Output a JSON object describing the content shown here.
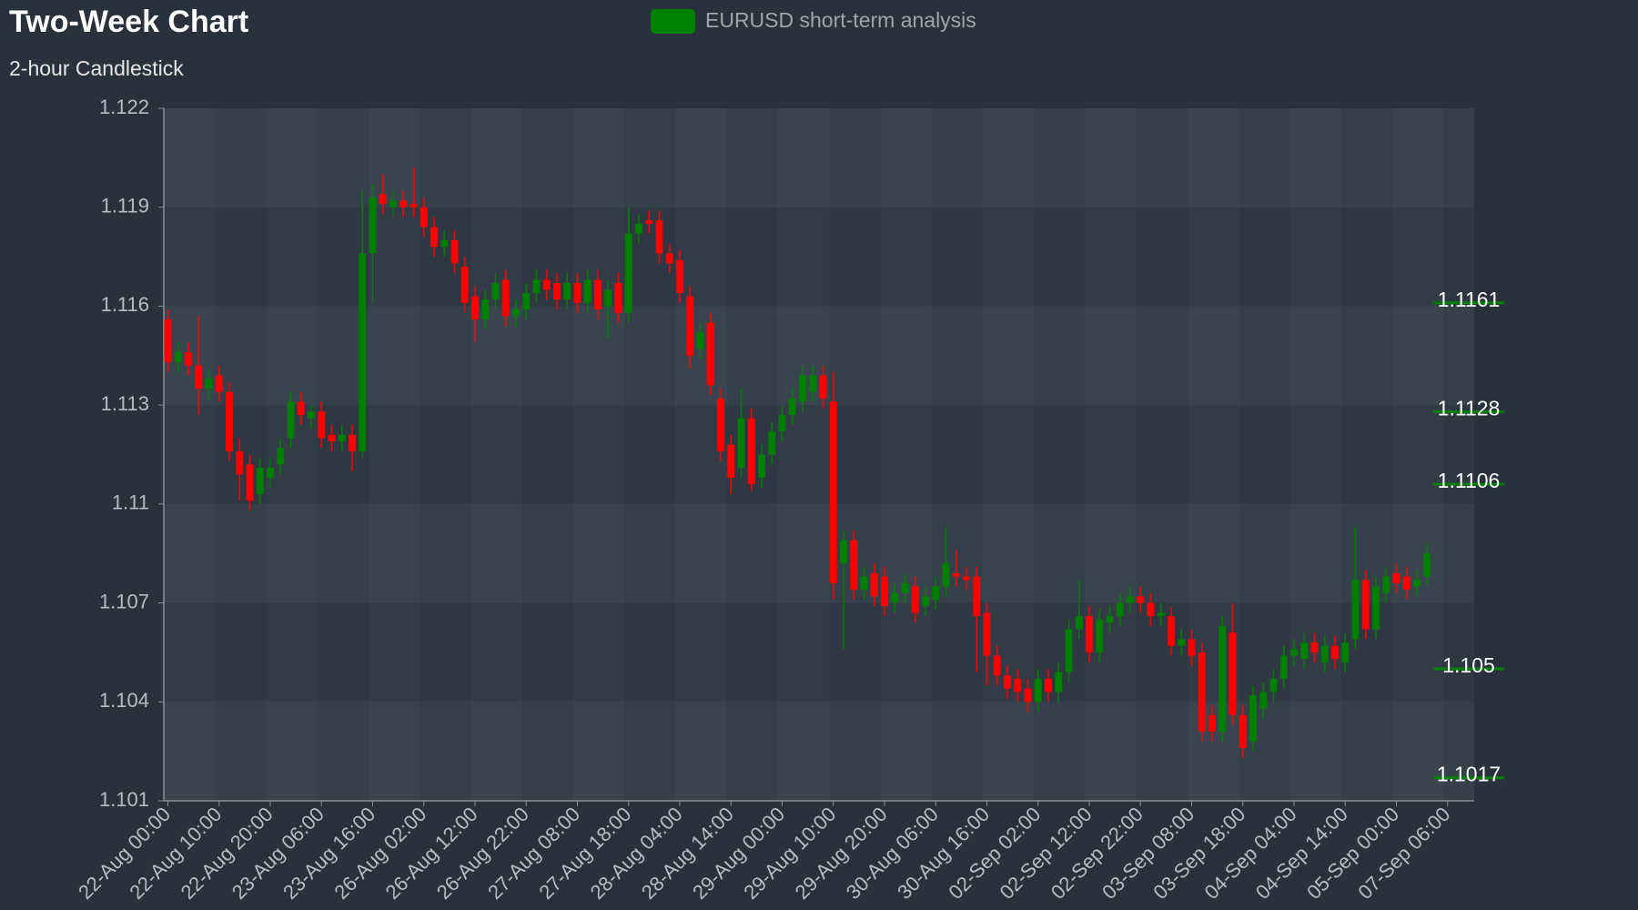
{
  "chart_data": {
    "type": "candlestick",
    "title": "Two-Week Chart",
    "subtitle": "2-hour Candlestick",
    "categories": [
      "22-Aug 00:00",
      null,
      null,
      null,
      null,
      "22-Aug 10:00",
      null,
      null,
      null,
      null,
      "22-Aug 20:00",
      null,
      null,
      null,
      null,
      "23-Aug 06:00",
      null,
      null,
      null,
      null,
      "23-Aug 16:00",
      null,
      null,
      null,
      null,
      "26-Aug 02:00",
      null,
      null,
      null,
      null,
      "26-Aug 12:00",
      null,
      null,
      null,
      null,
      "26-Aug 22:00",
      null,
      null,
      null,
      null,
      "27-Aug 08:00",
      null,
      null,
      null,
      null,
      "27-Aug 18:00",
      null,
      null,
      null,
      null,
      "28-Aug 04:00",
      null,
      null,
      null,
      null,
      "28-Aug 14:00",
      null,
      null,
      null,
      null,
      "29-Aug 00:00",
      null,
      null,
      null,
      null,
      "29-Aug 10:00",
      null,
      null,
      null,
      null,
      "29-Aug 20:00",
      null,
      null,
      null,
      null,
      "30-Aug 06:00",
      null,
      null,
      null,
      null,
      "30-Aug 16:00",
      null,
      null,
      null,
      null,
      "02-Sep 02:00",
      null,
      null,
      null,
      null,
      "02-Sep 12:00",
      null,
      null,
      null,
      null,
      "02-Sep 22:00",
      null,
      null,
      null,
      null,
      "03-Sep 08:00",
      null,
      null,
      null,
      null,
      "03-Sep 18:00",
      null,
      null,
      null,
      null,
      "04-Sep 04:00",
      null,
      null,
      null,
      null,
      "04-Sep 14:00",
      null,
      null,
      null,
      null,
      "05-Sep 00:00",
      null,
      null,
      null,
      null,
      "07-Sep 06:00"
    ],
    "series": [
      {
        "name": "EURUSD short-term analysis",
        "color": "#008000",
        "up_color": "#008000",
        "down_color": "#ff0000",
        "open": [
          1.1156,
          1.1143,
          1.1146,
          1.1142,
          1.1135,
          1.1139,
          1.1134,
          1.1116,
          1.1112,
          1.1103,
          1.1108,
          1.1112,
          1.112,
          1.1131,
          1.1126,
          1.1128,
          1.1121,
          1.1119,
          1.1121,
          1.1116,
          1.1176,
          1.1194,
          1.119,
          1.1192,
          1.1191,
          1.119,
          1.1184,
          1.1178,
          1.118,
          1.1172,
          1.1163,
          1.1156,
          1.1162,
          1.1168,
          1.1157,
          1.1159,
          1.1164,
          1.1168,
          1.1167,
          1.1162,
          1.1167,
          1.1161,
          1.1168,
          1.116,
          1.1167,
          1.1158,
          1.1182,
          1.1186,
          1.1186,
          1.1176,
          1.1174,
          1.1163,
          1.1147,
          1.1155,
          1.1132,
          1.1118,
          1.1111,
          1.1126,
          1.1108,
          1.1115,
          1.1122,
          1.1127,
          1.1131,
          1.1134,
          1.1139,
          1.1131,
          1.1082,
          1.1089,
          1.1074,
          1.1079,
          1.1078,
          1.107,
          1.1073,
          1.1075,
          1.1069,
          1.1071,
          1.1075,
          1.1079,
          1.1078,
          1.1078,
          1.1067,
          1.1054,
          1.1048,
          1.1047,
          1.1044,
          1.104,
          1.1047,
          1.1043,
          1.1049,
          1.1062,
          1.1066,
          1.1055,
          1.1064,
          1.1066,
          1.107,
          1.1072,
          1.107,
          1.1066,
          1.1066,
          1.1057,
          1.1059,
          1.1055,
          1.1036,
          1.1031,
          1.1061,
          1.1036,
          1.1028,
          1.1038,
          1.1043,
          1.1047,
          1.1054,
          1.1053,
          1.1058,
          1.1052,
          1.1057,
          1.1052,
          1.1059,
          1.1077,
          1.1062,
          1.1073,
          1.1079,
          1.1078,
          1.1075,
          1.1078,
          null,
          null
        ],
        "high": [
          1.1159,
          1.1149,
          1.1149,
          1.1157,
          1.1141,
          1.1142,
          1.1137,
          1.112,
          1.1115,
          1.1114,
          1.1114,
          1.112,
          1.1134,
          1.1134,
          1.113,
          1.1131,
          1.1124,
          1.1124,
          1.1124,
          1.1195,
          1.1197,
          1.12,
          1.1195,
          1.1195,
          1.1202,
          1.1193,
          1.1187,
          1.1183,
          1.1183,
          1.1175,
          1.1166,
          1.1165,
          1.117,
          1.1171,
          1.1162,
          1.1167,
          1.1171,
          1.1171,
          1.117,
          1.117,
          1.117,
          1.1171,
          1.1171,
          1.1168,
          1.117,
          1.119,
          1.1188,
          1.1189,
          1.1189,
          1.1179,
          1.1177,
          1.1166,
          1.1155,
          1.1158,
          1.1135,
          1.1121,
          1.1135,
          1.1129,
          1.1118,
          1.1125,
          1.113,
          1.1135,
          1.1142,
          1.1142,
          1.1142,
          1.114,
          1.1092,
          1.1092,
          1.1081,
          1.1082,
          1.1081,
          1.1076,
          1.1079,
          1.1078,
          1.1075,
          1.1078,
          1.1093,
          1.1086,
          1.1081,
          1.1081,
          1.107,
          1.1057,
          1.1051,
          1.105,
          1.1047,
          1.105,
          1.105,
          1.1052,
          1.1065,
          1.1077,
          1.1069,
          1.1068,
          1.1069,
          1.1073,
          1.1075,
          1.1075,
          1.1073,
          1.107,
          1.1069,
          1.1062,
          1.1062,
          1.1058,
          1.1039,
          1.1066,
          1.107,
          1.1039,
          1.1045,
          1.1046,
          1.105,
          1.1057,
          1.1059,
          1.1061,
          1.1061,
          1.106,
          1.106,
          1.1061,
          1.1093,
          1.108,
          1.1078,
          1.1081,
          1.1082,
          1.1081,
          1.108,
          1.1088,
          null,
          null
        ],
        "low": [
          1.114,
          1.114,
          1.1139,
          1.1127,
          1.1132,
          1.1131,
          1.1113,
          1.1101,
          1.1098,
          1.11,
          1.1105,
          1.1109,
          1.1117,
          1.1124,
          1.1123,
          1.1117,
          1.1116,
          1.1116,
          1.111,
          1.1114,
          1.1161,
          1.1188,
          1.1187,
          1.1187,
          1.1187,
          1.1181,
          1.1175,
          1.1175,
          1.117,
          1.1158,
          1.1149,
          1.1153,
          1.1159,
          1.1154,
          1.1154,
          1.1156,
          1.1161,
          1.1162,
          1.1159,
          1.1159,
          1.1158,
          1.1158,
          1.1156,
          1.115,
          1.1155,
          1.1155,
          1.1179,
          1.1182,
          1.1173,
          1.117,
          1.1161,
          1.1141,
          1.1144,
          1.1133,
          1.1113,
          1.1103,
          1.1108,
          1.1104,
          1.1105,
          1.1112,
          1.1119,
          1.1124,
          1.1128,
          1.1131,
          1.1129,
          1.1071,
          1.1056,
          1.1071,
          1.1071,
          1.1069,
          1.1066,
          1.1067,
          1.107,
          1.1064,
          1.1066,
          1.1068,
          1.1072,
          1.1075,
          1.1074,
          1.1049,
          1.1045,
          1.1045,
          1.1041,
          1.104,
          1.1037,
          1.1037,
          1.104,
          1.104,
          1.1046,
          1.1059,
          1.1052,
          1.1052,
          1.1061,
          1.1063,
          1.1067,
          1.1067,
          1.1063,
          1.1063,
          1.1054,
          1.1054,
          1.1051,
          1.1028,
          1.1028,
          1.1028,
          1.1033,
          1.1023,
          1.1025,
          1.1035,
          1.104,
          1.1044,
          1.1051,
          1.105,
          1.1052,
          1.1049,
          1.105,
          1.1049,
          1.1056,
          1.1059,
          1.1059,
          1.107,
          1.1073,
          1.1071,
          1.1072,
          1.1075,
          null,
          null
        ],
        "close": [
          1.1143,
          1.1146,
          1.1142,
          1.1135,
          1.1138,
          1.1134,
          1.1116,
          1.1109,
          1.1101,
          1.1111,
          1.1111,
          1.1117,
          1.1131,
          1.1127,
          1.1128,
          1.112,
          1.1119,
          1.1121,
          1.1116,
          1.1176,
          1.1193,
          1.1191,
          1.1192,
          1.119,
          1.119,
          1.1184,
          1.1178,
          1.118,
          1.1173,
          1.1161,
          1.1156,
          1.1162,
          1.1167,
          1.1157,
          1.1159,
          1.1164,
          1.1168,
          1.1165,
          1.1162,
          1.1167,
          1.1161,
          1.1168,
          1.1159,
          1.1165,
          1.1158,
          1.1182,
          1.1185,
          1.1185,
          1.1176,
          1.1173,
          1.1164,
          1.1145,
          1.1152,
          1.1136,
          1.1116,
          1.1108,
          1.1126,
          1.1106,
          1.1115,
          1.1122,
          1.1127,
          1.1132,
          1.1139,
          1.1139,
          1.1132,
          1.1076,
          1.1089,
          1.1074,
          1.1078,
          1.1072,
          1.1069,
          1.1073,
          1.1076,
          1.1067,
          1.1072,
          1.1075,
          1.1082,
          1.1078,
          1.1077,
          1.1066,
          1.1054,
          1.1048,
          1.1044,
          1.1043,
          1.104,
          1.1047,
          1.1043,
          1.1049,
          1.1062,
          1.1066,
          1.1055,
          1.1065,
          1.1066,
          1.107,
          1.1072,
          1.107,
          1.1066,
          1.1067,
          1.1057,
          1.1059,
          1.1054,
          1.1031,
          1.1031,
          1.1063,
          1.1036,
          1.1026,
          1.1042,
          1.1043,
          1.1047,
          1.1054,
          1.1056,
          1.1058,
          1.1055,
          1.1057,
          1.1053,
          1.1058,
          1.1077,
          1.1062,
          1.1075,
          1.1078,
          1.1076,
          1.1074,
          1.1077,
          1.1085,
          null,
          null
        ]
      }
    ],
    "ylim": [
      1.101,
      1.122
    ],
    "yticks": [
      1.101,
      1.104,
      1.107,
      1.11,
      1.113,
      1.116,
      1.119,
      1.122
    ],
    "levels": [
      1.1161,
      1.1128,
      1.1106,
      1.105,
      1.1017
    ],
    "level_color": "#008000",
    "legend": "top"
  }
}
